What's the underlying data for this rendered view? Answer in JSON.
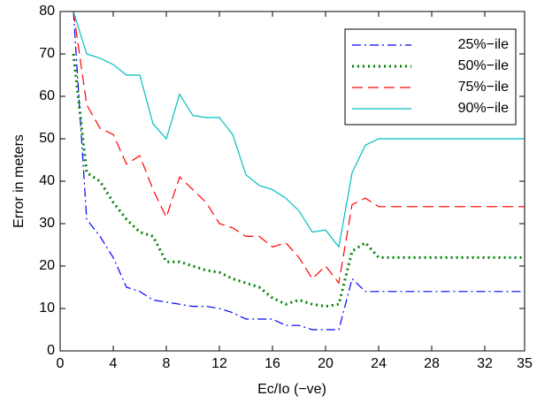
{
  "chart_data": {
    "type": "line",
    "xlabel": "Ec/Io (−ve)",
    "ylabel": "Error in meters",
    "x": [
      1,
      2,
      3,
      4,
      5,
      6,
      7,
      8,
      9,
      10,
      11,
      12,
      13,
      14,
      15,
      16,
      17,
      18,
      19,
      20,
      21,
      22,
      23,
      24,
      25,
      26,
      27,
      28,
      29,
      30,
      31,
      32,
      33,
      34,
      35
    ],
    "xlim": [
      0,
      35
    ],
    "xticks": [
      0,
      4,
      8,
      12,
      16,
      20,
      24,
      28,
      32,
      35
    ],
    "ylim": [
      0,
      80
    ],
    "yticks": [
      0,
      10,
      20,
      30,
      40,
      50,
      60,
      70,
      80
    ],
    "legend": "upper right",
    "series": [
      {
        "name": "25%−ile",
        "color": "#0000ff",
        "dash": "dashdot",
        "values": [
          80,
          31,
          27,
          22,
          15,
          14,
          12,
          11.5,
          11,
          10.5,
          10.5,
          10,
          9,
          7.5,
          7.5,
          7.5,
          6,
          6,
          5,
          5,
          5,
          17,
          14,
          14,
          14,
          14,
          14,
          14,
          14,
          14,
          14,
          14,
          14,
          14,
          14
        ]
      },
      {
        "name": "50%−ile",
        "color": "#008000",
        "dash": "dotted",
        "values": [
          70,
          42,
          40,
          35,
          31,
          28,
          27,
          21,
          21,
          20,
          19,
          18.5,
          17,
          16,
          15,
          12.5,
          11,
          12,
          11,
          10.5,
          11,
          23.5,
          25.5,
          22,
          22,
          22,
          22,
          22,
          22,
          22,
          22,
          22,
          22,
          22,
          22
        ]
      },
      {
        "name": "75%−ile",
        "color": "#ff0000",
        "dash": "dashed",
        "values": [
          80,
          58,
          52.5,
          51,
          44,
          46,
          38,
          31.5,
          41,
          38,
          35,
          30,
          29,
          27,
          27,
          24.5,
          25.5,
          22,
          17,
          20,
          16,
          34.5,
          36,
          34,
          34,
          34,
          34,
          34,
          34,
          34,
          34,
          34,
          34,
          34,
          34
        ]
      },
      {
        "name": "90%−ile",
        "color": "#00bfbf",
        "dash": "solid",
        "values": [
          80,
          70,
          69,
          67.5,
          65,
          65,
          53.5,
          50,
          60.5,
          55.5,
          55,
          55,
          51,
          41.5,
          39,
          38,
          36,
          33,
          28,
          28.5,
          24.5,
          42,
          48.5,
          50,
          50,
          50,
          50,
          50,
          50,
          50,
          50,
          50,
          50,
          50,
          50
        ]
      }
    ]
  }
}
